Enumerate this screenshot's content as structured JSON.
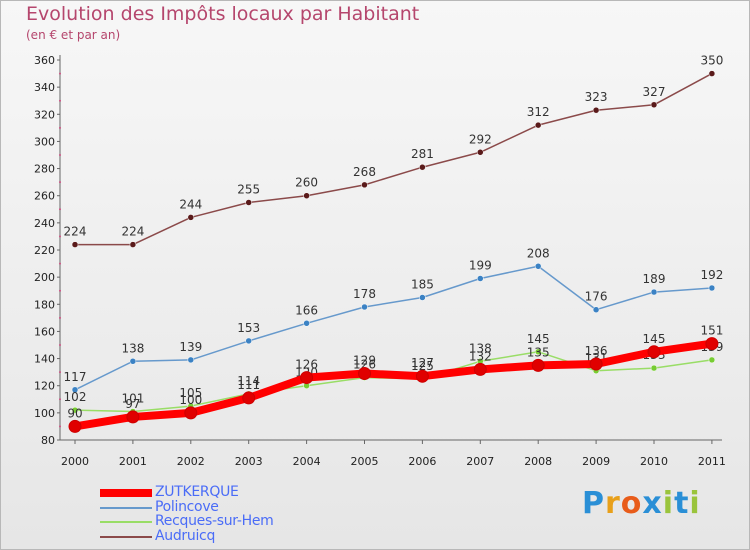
{
  "chart_data": {
    "type": "line",
    "title": "Evolution des Impôts locaux par Habitant",
    "subtitle": "(en € et par an)",
    "x": [
      "2000",
      "2001",
      "2002",
      "2003",
      "2004",
      "2005",
      "2006",
      "2007",
      "2008",
      "2009",
      "2010",
      "2011"
    ],
    "ylim": [
      80,
      360
    ],
    "yticks": [
      80,
      100,
      120,
      140,
      160,
      180,
      200,
      220,
      240,
      260,
      280,
      300,
      320,
      340,
      360
    ],
    "grid": false,
    "legend_position": "bottom-left",
    "series": [
      {
        "name": "ZUTKERQUE",
        "color": "#ff0000",
        "marker": "#e00000",
        "values": [
          90,
          97,
          100,
          111,
          126,
          129,
          127,
          132,
          135,
          136,
          145,
          151
        ]
      },
      {
        "name": "Polincove",
        "color": "#6699cc",
        "marker": "#3b82c4",
        "values": [
          117,
          138,
          139,
          153,
          166,
          178,
          185,
          199,
          208,
          176,
          189,
          192
        ]
      },
      {
        "name": "Recques-sur-Hem",
        "color": "#99dd66",
        "marker": "#77cc33",
        "values": [
          102,
          101,
          105,
          114,
          120,
          126,
          125,
          138,
          145,
          131,
          133,
          139
        ]
      },
      {
        "name": "Audruicq",
        "color": "#8b4a4a",
        "marker": "#5a1a1a",
        "values": [
          224,
          224,
          244,
          255,
          260,
          268,
          281,
          292,
          312,
          323,
          327,
          350
        ]
      }
    ]
  },
  "logo": {
    "text": "Proxiti",
    "letters": [
      "P",
      "r",
      "o",
      "x",
      "i",
      "t",
      "i"
    ],
    "colors": [
      "#2a8fd6",
      "#e8a01a",
      "#e85c1a",
      "#2a8fd6",
      "#9ac43c",
      "#2a8fd6",
      "#9ac43c"
    ]
  }
}
